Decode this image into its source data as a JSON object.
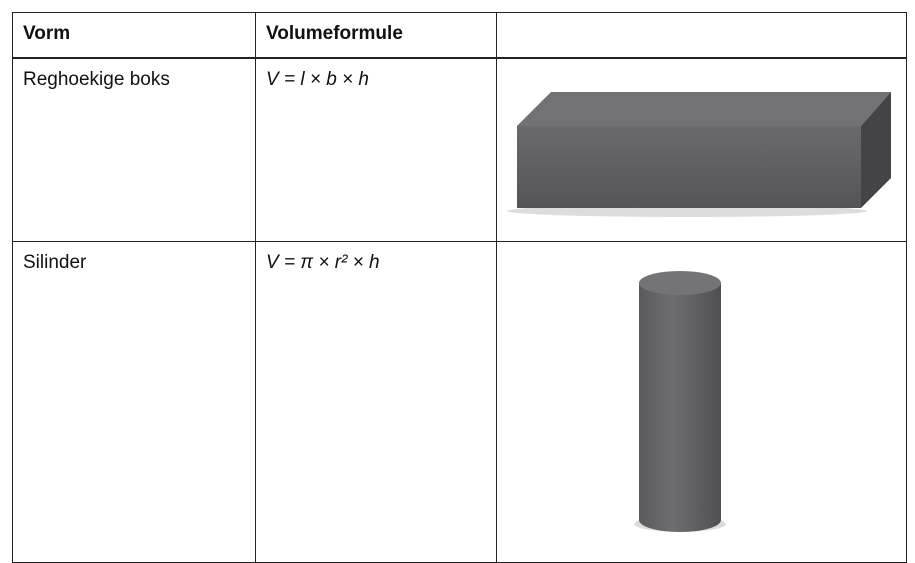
{
  "table": {
    "headers": [
      "Vorm",
      "Volumeformule"
    ],
    "rows": [
      [
        "Reghoekige boks",
        "V = l × b × h"
      ],
      [
        "Silinder",
        "V = π × r² × h"
      ]
    ]
  }
}
